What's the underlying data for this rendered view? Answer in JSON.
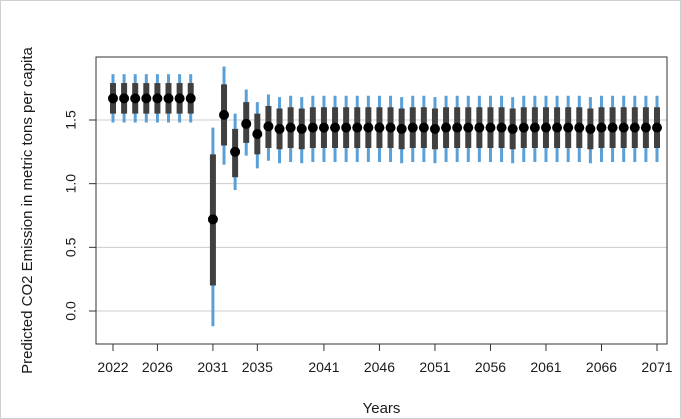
{
  "chart_data": {
    "type": "scatter",
    "xlabel": "Years",
    "ylabel": "Predicted CO2 Emission in metric tons per capita",
    "x_tick_labels": [
      "2022",
      "2026",
      "2031",
      "2035",
      "2041",
      "2046",
      "2051",
      "2056",
      "2061",
      "2066",
      "2071"
    ],
    "y_tick_labels": [
      "0.0",
      "0.5",
      "1.0",
      "1.5"
    ],
    "y_ticks": [
      0.0,
      0.5,
      1.0,
      1.5
    ],
    "ylim": [
      -0.2,
      1.95
    ],
    "xlim": [
      2022,
      2071
    ],
    "grid": "horizontal",
    "colors": {
      "point": "#000000",
      "inner_interval": "#404040",
      "outer_interval": "#5aa0d8",
      "grid": "#cccccc",
      "axis": "#333333"
    },
    "series": [
      {
        "values": [
          {
            "x": 2022,
            "y": 1.67,
            "inner": [
              1.55,
              1.79
            ],
            "outer": [
              1.48,
              1.86
            ]
          },
          {
            "x": 2023,
            "y": 1.67,
            "inner": [
              1.55,
              1.79
            ],
            "outer": [
              1.48,
              1.86
            ]
          },
          {
            "x": 2024,
            "y": 1.67,
            "inner": [
              1.55,
              1.79
            ],
            "outer": [
              1.48,
              1.86
            ]
          },
          {
            "x": 2025,
            "y": 1.67,
            "inner": [
              1.55,
              1.79
            ],
            "outer": [
              1.48,
              1.86
            ]
          },
          {
            "x": 2026,
            "y": 1.67,
            "inner": [
              1.55,
              1.79
            ],
            "outer": [
              1.48,
              1.86
            ]
          },
          {
            "x": 2027,
            "y": 1.67,
            "inner": [
              1.55,
              1.79
            ],
            "outer": [
              1.48,
              1.86
            ]
          },
          {
            "x": 2028,
            "y": 1.67,
            "inner": [
              1.55,
              1.79
            ],
            "outer": [
              1.48,
              1.86
            ]
          },
          {
            "x": 2029,
            "y": 1.67,
            "inner": [
              1.55,
              1.79
            ],
            "outer": [
              1.48,
              1.86
            ]
          },
          {
            "x": 2031,
            "y": 0.72,
            "inner": [
              0.2,
              1.23
            ],
            "outer": [
              -0.12,
              1.44
            ]
          },
          {
            "x": 2032,
            "y": 1.54,
            "inner": [
              1.3,
              1.78
            ],
            "outer": [
              1.15,
              1.92
            ]
          },
          {
            "x": 2033,
            "y": 1.25,
            "inner": [
              1.05,
              1.43
            ],
            "outer": [
              0.95,
              1.55
            ]
          },
          {
            "x": 2034,
            "y": 1.47,
            "inner": [
              1.32,
              1.64
            ],
            "outer": [
              1.22,
              1.74
            ]
          },
          {
            "x": 2035,
            "y": 1.39,
            "inner": [
              1.23,
              1.55
            ],
            "outer": [
              1.12,
              1.64
            ]
          },
          {
            "x": 2036,
            "y": 1.45,
            "inner": [
              1.28,
              1.61
            ],
            "outer": [
              1.18,
              1.7
            ]
          },
          {
            "x": 2037,
            "y": 1.43,
            "inner": [
              1.27,
              1.59
            ],
            "outer": [
              1.16,
              1.68
            ]
          },
          {
            "x": 2038,
            "y": 1.44,
            "inner": [
              1.28,
              1.6
            ],
            "outer": [
              1.17,
              1.69
            ]
          },
          {
            "x": 2039,
            "y": 1.43,
            "inner": [
              1.27,
              1.59
            ],
            "outer": [
              1.16,
              1.68
            ]
          },
          {
            "x": 2040,
            "y": 1.44,
            "inner": [
              1.28,
              1.6
            ],
            "outer": [
              1.17,
              1.69
            ]
          },
          {
            "x": 2041,
            "y": 1.44,
            "inner": [
              1.28,
              1.6
            ],
            "outer": [
              1.17,
              1.69
            ]
          },
          {
            "x": 2042,
            "y": 1.44,
            "inner": [
              1.28,
              1.6
            ],
            "outer": [
              1.17,
              1.69
            ]
          },
          {
            "x": 2043,
            "y": 1.44,
            "inner": [
              1.28,
              1.6
            ],
            "outer": [
              1.17,
              1.69
            ]
          },
          {
            "x": 2044,
            "y": 1.44,
            "inner": [
              1.28,
              1.6
            ],
            "outer": [
              1.17,
              1.69
            ]
          },
          {
            "x": 2045,
            "y": 1.44,
            "inner": [
              1.28,
              1.6
            ],
            "outer": [
              1.17,
              1.69
            ]
          },
          {
            "x": 2046,
            "y": 1.44,
            "inner": [
              1.28,
              1.6
            ],
            "outer": [
              1.17,
              1.69
            ]
          },
          {
            "x": 2047,
            "y": 1.44,
            "inner": [
              1.28,
              1.6
            ],
            "outer": [
              1.17,
              1.69
            ]
          },
          {
            "x": 2048,
            "y": 1.43,
            "inner": [
              1.27,
              1.59
            ],
            "outer": [
              1.16,
              1.68
            ]
          },
          {
            "x": 2049,
            "y": 1.44,
            "inner": [
              1.28,
              1.6
            ],
            "outer": [
              1.17,
              1.69
            ]
          },
          {
            "x": 2050,
            "y": 1.44,
            "inner": [
              1.28,
              1.6
            ],
            "outer": [
              1.17,
              1.69
            ]
          },
          {
            "x": 2051,
            "y": 1.43,
            "inner": [
              1.27,
              1.59
            ],
            "outer": [
              1.16,
              1.68
            ]
          },
          {
            "x": 2052,
            "y": 1.44,
            "inner": [
              1.28,
              1.6
            ],
            "outer": [
              1.17,
              1.69
            ]
          },
          {
            "x": 2053,
            "y": 1.44,
            "inner": [
              1.28,
              1.6
            ],
            "outer": [
              1.17,
              1.69
            ]
          },
          {
            "x": 2054,
            "y": 1.44,
            "inner": [
              1.28,
              1.6
            ],
            "outer": [
              1.17,
              1.69
            ]
          },
          {
            "x": 2055,
            "y": 1.44,
            "inner": [
              1.28,
              1.6
            ],
            "outer": [
              1.17,
              1.69
            ]
          },
          {
            "x": 2056,
            "y": 1.44,
            "inner": [
              1.28,
              1.6
            ],
            "outer": [
              1.17,
              1.69
            ]
          },
          {
            "x": 2057,
            "y": 1.44,
            "inner": [
              1.28,
              1.6
            ],
            "outer": [
              1.17,
              1.69
            ]
          },
          {
            "x": 2058,
            "y": 1.43,
            "inner": [
              1.27,
              1.59
            ],
            "outer": [
              1.16,
              1.68
            ]
          },
          {
            "x": 2059,
            "y": 1.44,
            "inner": [
              1.28,
              1.6
            ],
            "outer": [
              1.17,
              1.69
            ]
          },
          {
            "x": 2060,
            "y": 1.44,
            "inner": [
              1.28,
              1.6
            ],
            "outer": [
              1.17,
              1.69
            ]
          },
          {
            "x": 2061,
            "y": 1.44,
            "inner": [
              1.28,
              1.6
            ],
            "outer": [
              1.17,
              1.69
            ]
          },
          {
            "x": 2062,
            "y": 1.44,
            "inner": [
              1.28,
              1.6
            ],
            "outer": [
              1.17,
              1.69
            ]
          },
          {
            "x": 2063,
            "y": 1.44,
            "inner": [
              1.28,
              1.6
            ],
            "outer": [
              1.17,
              1.69
            ]
          },
          {
            "x": 2064,
            "y": 1.44,
            "inner": [
              1.28,
              1.6
            ],
            "outer": [
              1.17,
              1.69
            ]
          },
          {
            "x": 2065,
            "y": 1.43,
            "inner": [
              1.27,
              1.59
            ],
            "outer": [
              1.16,
              1.68
            ]
          },
          {
            "x": 2066,
            "y": 1.44,
            "inner": [
              1.28,
              1.6
            ],
            "outer": [
              1.17,
              1.69
            ]
          },
          {
            "x": 2067,
            "y": 1.44,
            "inner": [
              1.28,
              1.6
            ],
            "outer": [
              1.17,
              1.69
            ]
          },
          {
            "x": 2068,
            "y": 1.44,
            "inner": [
              1.28,
              1.6
            ],
            "outer": [
              1.17,
              1.69
            ]
          },
          {
            "x": 2069,
            "y": 1.44,
            "inner": [
              1.28,
              1.6
            ],
            "outer": [
              1.17,
              1.69
            ]
          },
          {
            "x": 2070,
            "y": 1.44,
            "inner": [
              1.28,
              1.6
            ],
            "outer": [
              1.17,
              1.69
            ]
          },
          {
            "x": 2071,
            "y": 1.44,
            "inner": [
              1.28,
              1.6
            ],
            "outer": [
              1.17,
              1.69
            ]
          }
        ]
      }
    ]
  }
}
